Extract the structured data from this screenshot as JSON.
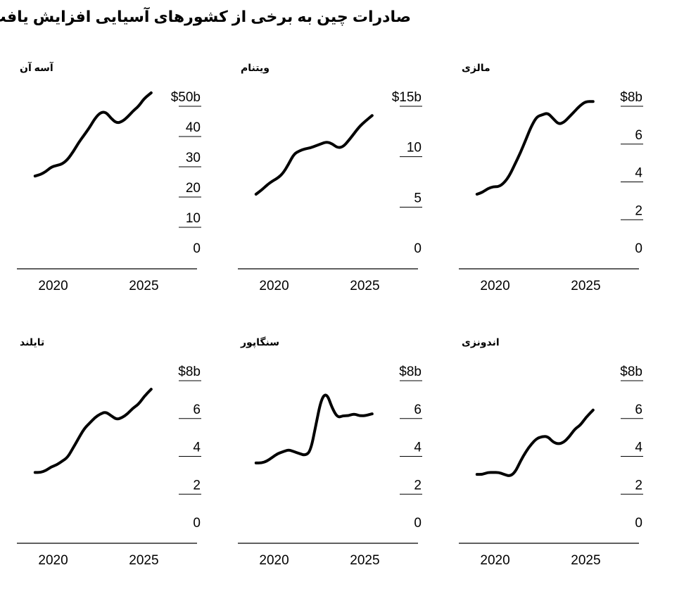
{
  "header": {
    "title": "صادرات چین به برخی از کشورهای آسیایی افزایش یافت"
  },
  "chart_data": [
    {
      "type": "line",
      "title": "آسه آن",
      "unit_prefix": "$",
      "unit_suffix": "b",
      "yticks": [
        0,
        10,
        20,
        30,
        40,
        50
      ],
      "xticks": [
        2020,
        2025
      ],
      "xlim": [
        2018.0,
        2027.0
      ],
      "ylim": [
        0,
        50
      ],
      "series": [
        {
          "x": [
            2019.0,
            2019.3,
            2019.6,
            2019.9,
            2020.2,
            2020.5,
            2020.8,
            2021.1,
            2021.4,
            2021.7,
            2022.0,
            2022.3,
            2022.6,
            2022.9,
            2023.2,
            2023.5,
            2023.8,
            2024.1,
            2024.4,
            2024.7,
            2025.0,
            2025.4
          ],
          "y": [
            26,
            26.5,
            27.5,
            29,
            29.5,
            30,
            31.5,
            34,
            37,
            39.5,
            42,
            45,
            47,
            47.2,
            45,
            43.5,
            44,
            45.5,
            47.5,
            49,
            51.5,
            53.5
          ]
        }
      ]
    },
    {
      "type": "line",
      "title": "ویتنام",
      "unit_prefix": "$",
      "unit_suffix": "b",
      "yticks": [
        0,
        5,
        10,
        15
      ],
      "xticks": [
        2020,
        2025
      ],
      "xlim": [
        2018.0,
        2027.0
      ],
      "ylim": [
        0,
        15
      ],
      "series": [
        {
          "x": [
            2019.0,
            2019.3,
            2019.6,
            2019.9,
            2020.2,
            2020.5,
            2020.8,
            2021.1,
            2021.4,
            2021.7,
            2022.0,
            2022.3,
            2022.6,
            2022.9,
            2023.2,
            2023.5,
            2023.8,
            2024.1,
            2024.4,
            2024.7,
            2025.0,
            2025.4
          ],
          "y": [
            6.0,
            6.4,
            6.9,
            7.3,
            7.6,
            8.1,
            9.0,
            10.0,
            10.3,
            10.5,
            10.6,
            10.8,
            11.0,
            11.2,
            11.0,
            10.6,
            10.7,
            11.3,
            12.0,
            12.7,
            13.2,
            13.8
          ]
        }
      ]
    },
    {
      "type": "line",
      "title": "مالزی",
      "unit_prefix": "$",
      "unit_suffix": "b",
      "yticks": [
        0,
        2,
        4,
        6,
        8
      ],
      "xticks": [
        2020,
        2025
      ],
      "xlim": [
        2018.0,
        2027.0
      ],
      "ylim": [
        0,
        8
      ],
      "series": [
        {
          "x": [
            2019.0,
            2019.3,
            2019.6,
            2019.9,
            2020.2,
            2020.5,
            2020.8,
            2021.1,
            2021.4,
            2021.7,
            2022.0,
            2022.3,
            2022.6,
            2022.9,
            2023.2,
            2023.5,
            2023.8,
            2024.1,
            2024.4,
            2024.7,
            2025.0,
            2025.4
          ],
          "y": [
            3.2,
            3.3,
            3.5,
            3.6,
            3.6,
            3.8,
            4.2,
            4.8,
            5.4,
            6.1,
            6.8,
            7.3,
            7.4,
            7.5,
            7.2,
            6.9,
            7.0,
            7.3,
            7.6,
            7.9,
            8.1,
            8.1
          ]
        }
      ]
    },
    {
      "type": "line",
      "title": "تایلند",
      "unit_prefix": "$",
      "unit_suffix": "b",
      "yticks": [
        0,
        2,
        4,
        6,
        8
      ],
      "xticks": [
        2020,
        2025
      ],
      "xlim": [
        2018.0,
        2027.0
      ],
      "ylim": [
        0,
        8
      ],
      "series": [
        {
          "x": [
            2019.0,
            2019.3,
            2019.6,
            2019.9,
            2020.2,
            2020.5,
            2020.8,
            2021.1,
            2021.4,
            2021.7,
            2022.0,
            2022.3,
            2022.6,
            2022.9,
            2023.2,
            2023.5,
            2023.8,
            2024.1,
            2024.4,
            2024.7,
            2025.0,
            2025.4
          ],
          "y": [
            3.0,
            3.0,
            3.1,
            3.3,
            3.4,
            3.6,
            3.8,
            4.3,
            4.8,
            5.3,
            5.6,
            5.9,
            6.1,
            6.2,
            6.0,
            5.8,
            5.9,
            6.1,
            6.4,
            6.6,
            7.0,
            7.4
          ]
        }
      ]
    },
    {
      "type": "line",
      "title": "سنگاپور",
      "unit_prefix": "$",
      "unit_suffix": "b",
      "yticks": [
        0,
        2,
        4,
        6,
        8
      ],
      "xticks": [
        2020,
        2025
      ],
      "xlim": [
        2018.0,
        2027.0
      ],
      "ylim": [
        0,
        8
      ],
      "series": [
        {
          "x": [
            2019.0,
            2019.3,
            2019.6,
            2019.9,
            2020.2,
            2020.5,
            2020.8,
            2021.1,
            2021.4,
            2021.7,
            2022.0,
            2022.3,
            2022.6,
            2022.9,
            2023.2,
            2023.5,
            2023.8,
            2024.1,
            2024.4,
            2024.7,
            2025.0,
            2025.4
          ],
          "y": [
            3.5,
            3.5,
            3.6,
            3.8,
            4.0,
            4.1,
            4.2,
            4.1,
            4.0,
            3.9,
            4.1,
            5.5,
            6.9,
            7.2,
            6.4,
            5.9,
            6.0,
            6.0,
            6.1,
            6.0,
            6.0,
            6.1
          ]
        }
      ]
    },
    {
      "type": "line",
      "title": "اندونزی",
      "unit_prefix": "$",
      "unit_suffix": "b",
      "yticks": [
        0,
        2,
        4,
        6,
        8
      ],
      "xticks": [
        2020,
        2025
      ],
      "xlim": [
        2018.0,
        2027.0
      ],
      "ylim": [
        0,
        8
      ],
      "series": [
        {
          "x": [
            2019.0,
            2019.3,
            2019.6,
            2019.9,
            2020.2,
            2020.5,
            2020.8,
            2021.1,
            2021.4,
            2021.7,
            2022.0,
            2022.3,
            2022.6,
            2022.9,
            2023.2,
            2023.5,
            2023.8,
            2024.1,
            2024.4,
            2024.7,
            2025.0,
            2025.4
          ],
          "y": [
            2.9,
            2.9,
            3.0,
            3.0,
            3.0,
            2.9,
            2.8,
            3.0,
            3.6,
            4.1,
            4.5,
            4.8,
            4.9,
            4.9,
            4.6,
            4.5,
            4.6,
            4.9,
            5.3,
            5.5,
            5.9,
            6.3
          ]
        }
      ]
    }
  ]
}
